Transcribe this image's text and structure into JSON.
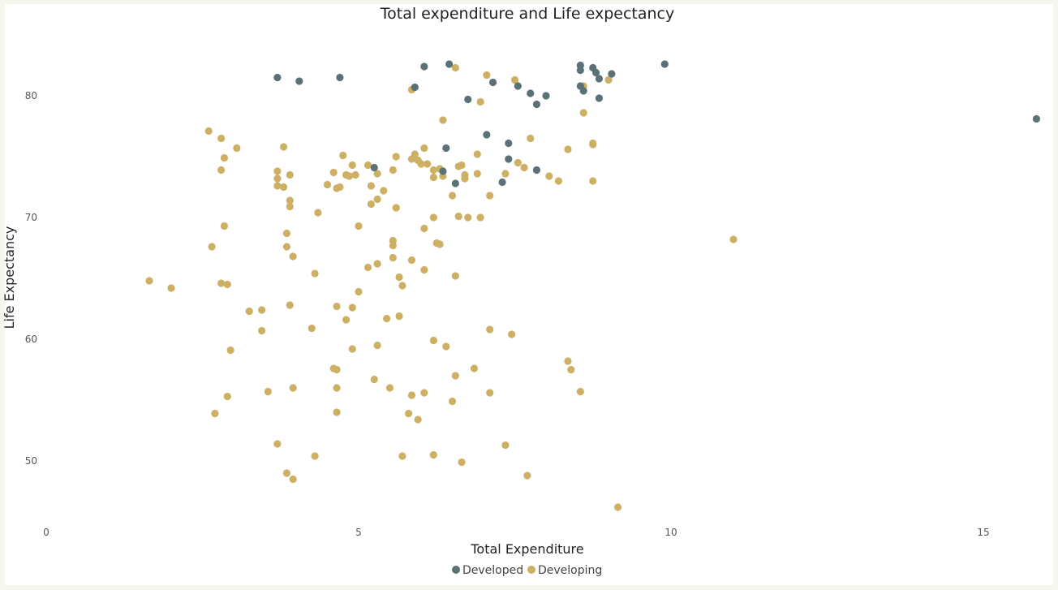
{
  "chart_data": {
    "type": "scatter",
    "title": "Total expenditure and Life expectancy",
    "xlabel": "Total Expenditure",
    "ylabel": "Life Expectancy",
    "xlim": [
      0,
      16
    ],
    "ylim": [
      45,
      84
    ],
    "xticks": [
      0,
      5,
      10,
      15
    ],
    "yticks": [
      50,
      60,
      70,
      80
    ],
    "grid": false,
    "legend_position": "bottom-center",
    "series": [
      {
        "name": "Developed",
        "color": "#5b7178",
        "points": [
          [
            3.7,
            81.5
          ],
          [
            4.05,
            81.2
          ],
          [
            4.7,
            81.5
          ],
          [
            5.9,
            80.7
          ],
          [
            6.05,
            82.4
          ],
          [
            6.45,
            82.6
          ],
          [
            7.15,
            81.1
          ],
          [
            6.75,
            79.7
          ],
          [
            7.55,
            80.8
          ],
          [
            7.75,
            80.2
          ],
          [
            7.85,
            79.3
          ],
          [
            8.0,
            80.0
          ],
          [
            8.55,
            82.5
          ],
          [
            8.55,
            82.1
          ],
          [
            8.75,
            82.3
          ],
          [
            8.8,
            81.9
          ],
          [
            8.85,
            81.4
          ],
          [
            9.05,
            81.8
          ],
          [
            8.55,
            80.8
          ],
          [
            8.6,
            80.4
          ],
          [
            8.85,
            79.8
          ],
          [
            9.9,
            82.6
          ],
          [
            15.85,
            78.1
          ],
          [
            7.05,
            76.8
          ],
          [
            7.4,
            76.1
          ],
          [
            7.4,
            74.8
          ],
          [
            6.4,
            75.7
          ],
          [
            6.35,
            73.8
          ],
          [
            6.55,
            72.8
          ],
          [
            7.3,
            72.9
          ],
          [
            7.85,
            73.9
          ],
          [
            5.25,
            74.1
          ]
        ]
      },
      {
        "name": "Developing",
        "color": "#cdb064",
        "points": [
          [
            6.55,
            82.3
          ],
          [
            7.05,
            81.7
          ],
          [
            7.5,
            81.3
          ],
          [
            9.0,
            81.3
          ],
          [
            8.6,
            80.8
          ],
          [
            5.85,
            80.5
          ],
          [
            6.95,
            79.5
          ],
          [
            8.6,
            78.6
          ],
          [
            6.35,
            78.0
          ],
          [
            2.6,
            77.1
          ],
          [
            2.8,
            76.5
          ],
          [
            3.05,
            75.7
          ],
          [
            2.85,
            74.9
          ],
          [
            2.8,
            73.9
          ],
          [
            3.8,
            75.8
          ],
          [
            3.7,
            73.8
          ],
          [
            3.7,
            73.2
          ],
          [
            3.9,
            73.5
          ],
          [
            3.7,
            72.6
          ],
          [
            3.8,
            72.5
          ],
          [
            3.9,
            71.4
          ],
          [
            3.9,
            70.9
          ],
          [
            4.75,
            75.1
          ],
          [
            4.9,
            74.3
          ],
          [
            5.15,
            74.3
          ],
          [
            4.6,
            73.7
          ],
          [
            4.8,
            73.5
          ],
          [
            4.85,
            73.4
          ],
          [
            4.95,
            73.5
          ],
          [
            5.3,
            73.6
          ],
          [
            4.5,
            72.7
          ],
          [
            4.65,
            72.4
          ],
          [
            4.7,
            72.5
          ],
          [
            5.2,
            72.6
          ],
          [
            5.4,
            72.2
          ],
          [
            5.3,
            71.5
          ],
          [
            5.2,
            71.1
          ],
          [
            5.6,
            75.0
          ],
          [
            5.85,
            74.8
          ],
          [
            5.9,
            75.2
          ],
          [
            5.95,
            74.7
          ],
          [
            6.05,
            75.7
          ],
          [
            6.0,
            74.4
          ],
          [
            6.1,
            74.4
          ],
          [
            5.55,
            73.9
          ],
          [
            6.2,
            73.9
          ],
          [
            6.3,
            74.0
          ],
          [
            6.35,
            73.4
          ],
          [
            6.2,
            73.3
          ],
          [
            6.6,
            74.2
          ],
          [
            6.65,
            74.3
          ],
          [
            6.9,
            75.2
          ],
          [
            6.7,
            73.5
          ],
          [
            6.7,
            73.2
          ],
          [
            6.9,
            73.6
          ],
          [
            7.1,
            71.8
          ],
          [
            7.55,
            74.5
          ],
          [
            7.65,
            74.1
          ],
          [
            7.75,
            76.5
          ],
          [
            7.35,
            73.6
          ],
          [
            8.35,
            75.6
          ],
          [
            8.75,
            76.0
          ],
          [
            8.75,
            76.1
          ],
          [
            8.05,
            73.4
          ],
          [
            8.2,
            73.0
          ],
          [
            8.75,
            73.0
          ],
          [
            6.5,
            71.8
          ],
          [
            5.6,
            70.8
          ],
          [
            6.2,
            70.0
          ],
          [
            6.6,
            70.1
          ],
          [
            6.75,
            70.0
          ],
          [
            6.95,
            70.0
          ],
          [
            4.35,
            70.4
          ],
          [
            2.85,
            69.3
          ],
          [
            5.0,
            69.3
          ],
          [
            6.05,
            69.1
          ],
          [
            3.85,
            68.7
          ],
          [
            3.85,
            67.6
          ],
          [
            2.65,
            67.6
          ],
          [
            5.55,
            68.1
          ],
          [
            5.55,
            67.7
          ],
          [
            6.25,
            67.9
          ],
          [
            6.3,
            67.8
          ],
          [
            11.0,
            68.2
          ],
          [
            3.95,
            66.8
          ],
          [
            5.55,
            66.7
          ],
          [
            5.85,
            66.5
          ],
          [
            5.3,
            66.2
          ],
          [
            5.15,
            65.9
          ],
          [
            6.05,
            65.7
          ],
          [
            4.3,
            65.4
          ],
          [
            5.65,
            65.1
          ],
          [
            6.55,
            65.2
          ],
          [
            1.65,
            64.8
          ],
          [
            2.0,
            64.2
          ],
          [
            2.8,
            64.6
          ],
          [
            2.9,
            64.5
          ],
          [
            5.7,
            64.4
          ],
          [
            5.0,
            63.9
          ],
          [
            3.9,
            62.8
          ],
          [
            4.65,
            62.7
          ],
          [
            4.9,
            62.6
          ],
          [
            3.25,
            62.3
          ],
          [
            3.45,
            62.4
          ],
          [
            4.8,
            61.6
          ],
          [
            5.45,
            61.7
          ],
          [
            5.65,
            61.9
          ],
          [
            3.45,
            60.7
          ],
          [
            4.25,
            60.9
          ],
          [
            7.1,
            60.8
          ],
          [
            7.45,
            60.4
          ],
          [
            2.95,
            59.1
          ],
          [
            4.9,
            59.2
          ],
          [
            5.3,
            59.5
          ],
          [
            6.2,
            59.9
          ],
          [
            6.4,
            59.4
          ],
          [
            8.35,
            58.2
          ],
          [
            8.4,
            57.5
          ],
          [
            4.6,
            57.6
          ],
          [
            4.65,
            57.5
          ],
          [
            6.85,
            57.6
          ],
          [
            6.55,
            57.0
          ],
          [
            5.25,
            56.7
          ],
          [
            3.95,
            56.0
          ],
          [
            4.65,
            56.0
          ],
          [
            5.5,
            56.0
          ],
          [
            3.55,
            55.7
          ],
          [
            2.9,
            55.3
          ],
          [
            5.85,
            55.4
          ],
          [
            6.05,
            55.6
          ],
          [
            7.1,
            55.6
          ],
          [
            8.55,
            55.7
          ],
          [
            6.5,
            54.9
          ],
          [
            2.7,
            53.9
          ],
          [
            4.65,
            54.0
          ],
          [
            5.8,
            53.9
          ],
          [
            5.95,
            53.4
          ],
          [
            3.7,
            51.4
          ],
          [
            7.35,
            51.3
          ],
          [
            4.3,
            50.4
          ],
          [
            5.7,
            50.4
          ],
          [
            6.2,
            50.5
          ],
          [
            6.65,
            49.9
          ],
          [
            3.85,
            49.0
          ],
          [
            3.95,
            48.5
          ],
          [
            7.7,
            48.8
          ],
          [
            9.15,
            46.2
          ]
        ]
      }
    ]
  }
}
